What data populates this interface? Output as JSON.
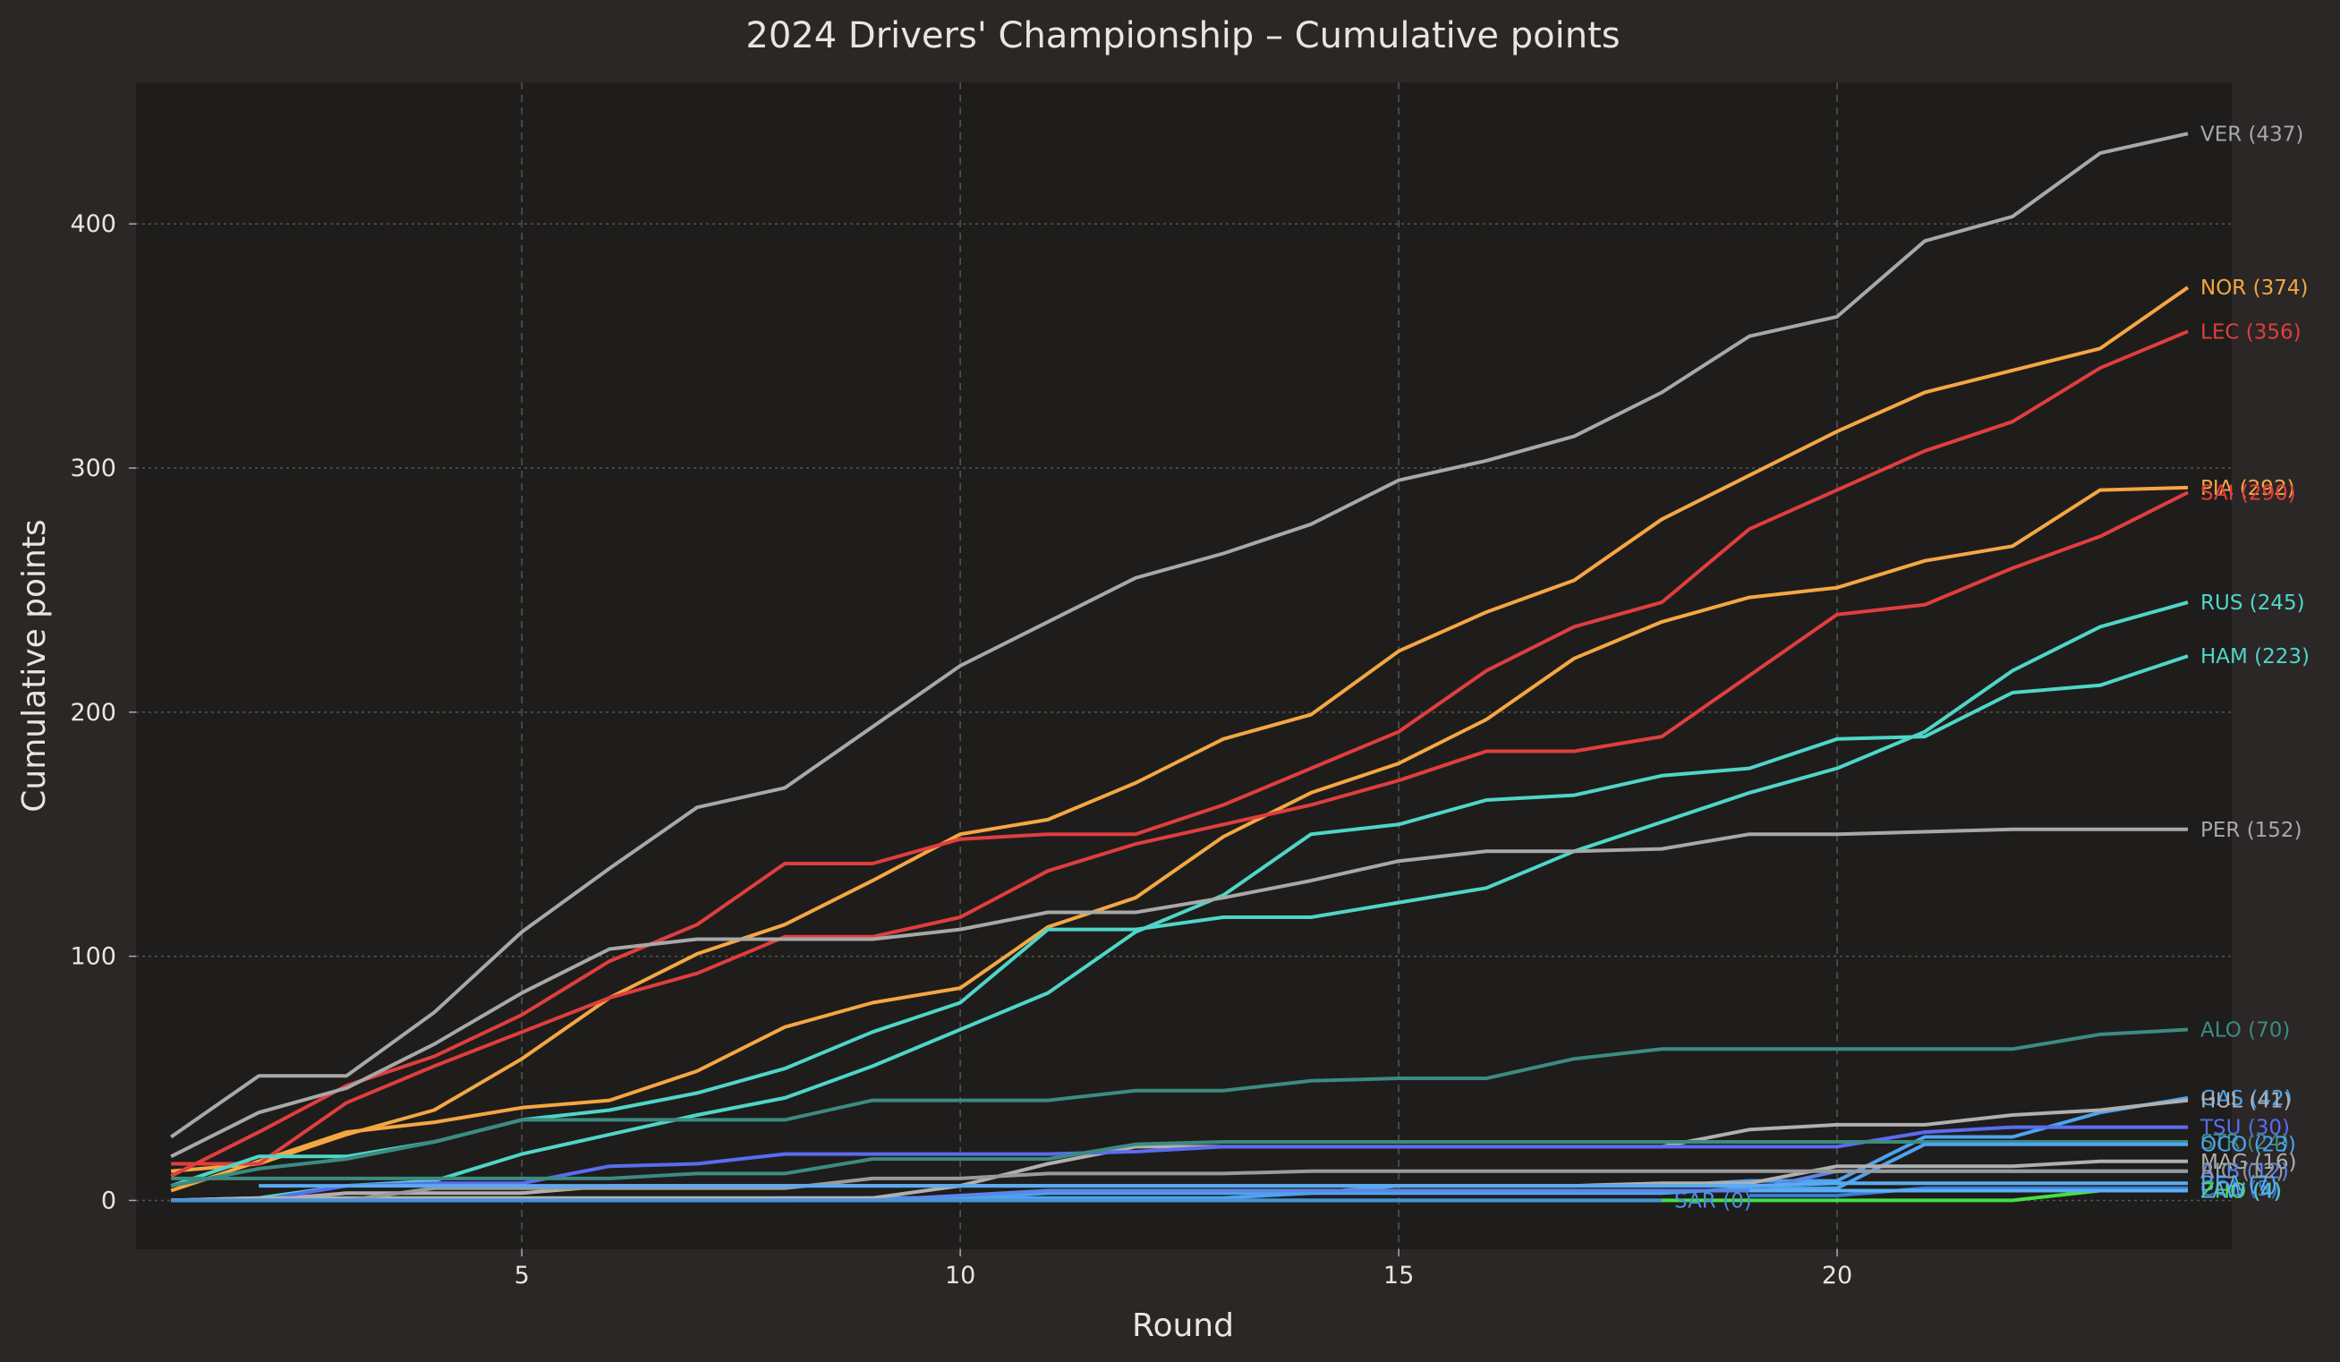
{
  "chart_data": {
    "type": "line",
    "title": "2024 Drivers' Championship – Cumulative points",
    "xlabel": "Round",
    "ylabel": "Cumulative points",
    "xlim": [
      0.6,
      24.5
    ],
    "ylim": [
      -20,
      458
    ],
    "xticks": [
      5,
      10,
      15,
      20
    ],
    "yticks": [
      0,
      100,
      200,
      300,
      400
    ],
    "grid": true,
    "legend": "none",
    "x": [
      1,
      2,
      3,
      4,
      5,
      6,
      7,
      8,
      9,
      10,
      11,
      12,
      13,
      14,
      15,
      16,
      17,
      18,
      19,
      20,
      21,
      22,
      23,
      24
    ],
    "series": [
      {
        "name": "VER (437)",
        "color": "#a8a8a8",
        "values": [
          26,
          51,
          51,
          77,
          110,
          136,
          161,
          169,
          194,
          219,
          237,
          255,
          265,
          277,
          295,
          303,
          313,
          331,
          354,
          362,
          393,
          403,
          429,
          437
        ]
      },
      {
        "name": "NOR (374)",
        "color": "#f5a742",
        "values": [
          12,
          15,
          27,
          37,
          58,
          83,
          101,
          113,
          131,
          150,
          156,
          171,
          189,
          199,
          225,
          241,
          254,
          279,
          297,
          315,
          331,
          340,
          349,
          374
        ]
      },
      {
        "name": "LEC (356)",
        "color": "#e03e3e",
        "values": [
          10,
          28,
          47,
          59,
          76,
          98,
          113,
          138,
          138,
          148,
          150,
          150,
          162,
          177,
          192,
          217,
          235,
          245,
          275,
          291,
          307,
          319,
          341,
          356
        ]
      },
      {
        "name": "PIA (292)",
        "color": "#f5a742",
        "values": [
          4,
          16,
          28,
          32,
          38,
          41,
          53,
          71,
          81,
          87,
          112,
          124,
          149,
          167,
          179,
          197,
          222,
          237,
          247,
          251,
          262,
          268,
          291,
          292
        ]
      },
      {
        "name": "SAI (290)",
        "color": "#e03e3e",
        "values": [
          15,
          15,
          40,
          55,
          69,
          83,
          93,
          108,
          108,
          116,
          135,
          146,
          154,
          162,
          172,
          184,
          184,
          190,
          215,
          240,
          244,
          259,
          272,
          290
        ]
      },
      {
        "name": "RUS (245)",
        "color": "#4fd6c8",
        "values": [
          6,
          18,
          18,
          24,
          33,
          37,
          44,
          54,
          69,
          81,
          111,
          111,
          116,
          116,
          122,
          128,
          143,
          155,
          167,
          177,
          192,
          217,
          235,
          245
        ]
      },
      {
        "name": "HAM (223)",
        "color": "#4fd6c8",
        "values": [
          0,
          1,
          6,
          8,
          19,
          27,
          35,
          42,
          55,
          70,
          85,
          110,
          125,
          150,
          154,
          164,
          166,
          174,
          177,
          189,
          190,
          208,
          211,
          223
        ]
      },
      {
        "name": "PER (152)",
        "color": "#a8a8a8",
        "values": [
          18,
          36,
          46,
          64,
          85,
          103,
          107,
          107,
          107,
          111,
          118,
          118,
          124,
          131,
          139,
          143,
          143,
          144,
          150,
          150,
          151,
          152,
          152,
          152
        ]
      },
      {
        "name": "ALO (70)",
        "color": "#3d8b80",
        "values": [
          6,
          13,
          17,
          24,
          33,
          33,
          33,
          33,
          41,
          41,
          41,
          45,
          45,
          49,
          50,
          50,
          58,
          62,
          62,
          62,
          62,
          62,
          68,
          70
        ]
      },
      {
        "name": "GAS (42)",
        "color": "#4da3f0",
        "values": [
          0,
          0,
          0,
          0,
          0,
          0,
          0,
          1,
          1,
          1,
          1,
          1,
          1,
          3,
          6,
          6,
          6,
          6,
          8,
          8,
          26,
          26,
          36,
          42
        ]
      },
      {
        "name": "HUL (41)",
        "color": "#b0b0b0",
        "values": [
          0,
          0,
          3,
          3,
          3,
          6,
          6,
          6,
          6,
          6,
          15,
          22,
          22,
          22,
          22,
          22,
          22,
          22,
          29,
          31,
          31,
          35,
          37,
          41
        ]
      },
      {
        "name": "TSU (30)",
        "color": "#5a6cf0",
        "values": [
          0,
          0,
          6,
          7,
          7,
          14,
          15,
          19,
          19,
          19,
          19,
          20,
          22,
          22,
          22,
          22,
          22,
          22,
          22,
          22,
          28,
          30,
          30,
          30
        ]
      },
      {
        "name": "STR (24)",
        "color": "#3d8b80",
        "values": [
          9,
          9,
          9,
          9,
          9,
          9,
          11,
          11,
          17,
          17,
          17,
          23,
          24,
          24,
          24,
          24,
          24,
          24,
          24,
          24,
          24,
          24,
          24,
          24
        ]
      },
      {
        "name": "OCO (23)",
        "color": "#4da3f0",
        "values": [
          0,
          0,
          0,
          0,
          0,
          0,
          0,
          0,
          1,
          1,
          3,
          3,
          3,
          3,
          3,
          3,
          3,
          3,
          5,
          5,
          23,
          23,
          23,
          23
        ]
      },
      {
        "name": "MAG (16)",
        "color": "#b0b0b0",
        "values": [
          0,
          1,
          1,
          1,
          1,
          1,
          1,
          1,
          1,
          6,
          6,
          6,
          6,
          6,
          6,
          6,
          6,
          7,
          7,
          14,
          14,
          14,
          16,
          16
        ]
      },
      {
        "name": "ALB (12)",
        "color": "#5a86e8",
        "values": [
          0,
          0,
          0,
          0,
          0,
          0,
          0,
          0,
          0,
          2,
          4,
          4,
          4,
          4,
          4,
          4,
          4,
          4,
          4,
          12,
          12,
          12,
          12,
          12
        ]
      },
      {
        "name": "RIC (12)",
        "color": "#9a9a9a",
        "values": [
          0,
          0,
          0,
          5,
          5,
          5,
          5,
          5,
          9,
          9,
          11,
          11,
          11,
          12,
          12,
          12,
          12,
          12,
          12,
          12,
          12,
          12,
          12,
          12
        ]
      },
      {
        "name": "COL (5)",
        "color": "#3a7bd5",
        "values": [
          null,
          null,
          null,
          null,
          null,
          null,
          null,
          null,
          null,
          null,
          null,
          null,
          null,
          null,
          null,
          null,
          null,
          null,
          2,
          2,
          5,
          5,
          5,
          5
        ]
      },
      {
        "name": "BEA (7)",
        "color": "#5aaaf0",
        "values": [
          null,
          6,
          6,
          6,
          6,
          6,
          6,
          6,
          6,
          6,
          6,
          6,
          6,
          6,
          6,
          6,
          6,
          6,
          6,
          7,
          7,
          7,
          7,
          7
        ]
      },
      {
        "name": "ZHO (4)",
        "color": "#44e044",
        "values": [
          0,
          0,
          0,
          0,
          0,
          0,
          0,
          0,
          0,
          0,
          0,
          0,
          0,
          0,
          0,
          0,
          0,
          0,
          0,
          0,
          0,
          0,
          4,
          4
        ]
      },
      {
        "name": "LAW (4)",
        "color": "#5ab0f5",
        "values": [
          null,
          null,
          null,
          null,
          null,
          null,
          null,
          null,
          null,
          null,
          null,
          null,
          null,
          null,
          null,
          null,
          null,
          null,
          4,
          4,
          4,
          4,
          4,
          4
        ]
      },
      {
        "name": "SAR (0)",
        "color": "#4a8fe0",
        "values": [
          0,
          0,
          0,
          0,
          0,
          0,
          0,
          0,
          0,
          0,
          0,
          0,
          0,
          0,
          0,
          0,
          0,
          0,
          null,
          null,
          null,
          null,
          null,
          null
        ]
      }
    ]
  }
}
